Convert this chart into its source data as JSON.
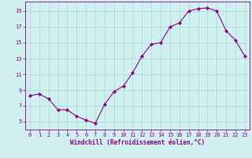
{
  "x": [
    0,
    1,
    2,
    3,
    4,
    5,
    6,
    7,
    8,
    9,
    10,
    11,
    12,
    13,
    14,
    15,
    16,
    17,
    18,
    19,
    20,
    21,
    22,
    23
  ],
  "y": [
    8.3,
    8.5,
    7.9,
    6.5,
    6.5,
    5.7,
    5.2,
    4.8,
    7.2,
    8.8,
    9.5,
    11.2,
    13.3,
    14.8,
    15.0,
    17.0,
    17.5,
    19.0,
    19.3,
    19.4,
    19.0,
    16.5,
    15.3,
    13.3
  ],
  "line_color": "#880088",
  "marker": "D",
  "marker_size": 2.0,
  "bg_color": "#cff0ee",
  "grid_color": "#aad4cc",
  "xlabel": "Windchill (Refroidissement éolien,°C)",
  "xlim": [
    -0.5,
    23.5
  ],
  "ylim": [
    4.0,
    20.2
  ],
  "xticks": [
    0,
    1,
    2,
    3,
    4,
    5,
    6,
    7,
    8,
    9,
    10,
    11,
    12,
    13,
    14,
    15,
    16,
    17,
    18,
    19,
    20,
    21,
    22,
    23
  ],
  "yticks": [
    5,
    7,
    9,
    11,
    13,
    15,
    17,
    19
  ],
  "tick_color": "#880088",
  "label_fontsize": 5.5,
  "tick_fontsize": 5.0
}
